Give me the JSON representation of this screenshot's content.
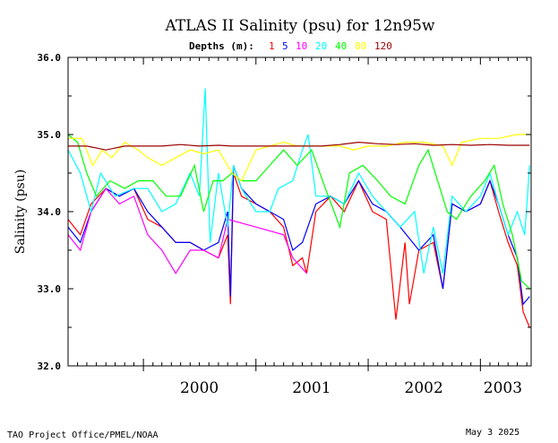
{
  "chart_data": {
    "type": "line",
    "title": "ATLAS II Salinity (psu) for 12n95w",
    "subtitle_label": "Depths (m):",
    "ylabel": "Salinity (psu)",
    "xlabel": "",
    "ylim": [
      32.0,
      36.0
    ],
    "yticks": [
      "32.0",
      "33.0",
      "34.0",
      "35.0",
      "36.0"
    ],
    "xlim": [
      "1999-05-01",
      "2003-06-15"
    ],
    "x_year_labels": [
      {
        "label": "2000",
        "x": "2000-07-01"
      },
      {
        "label": "2001",
        "x": "2001-07-01"
      },
      {
        "label": "2002",
        "x": "2002-07-01"
      },
      {
        "label": "2003",
        "x": "2003-03-15"
      }
    ],
    "legend_position": "top-center",
    "grid": false,
    "series": [
      {
        "name": "1",
        "color": "#ff0000",
        "points": [
          [
            "1999-05-01",
            33.9
          ],
          [
            "1999-06-10",
            33.7
          ],
          [
            "1999-07-15",
            34.1
          ],
          [
            "1999-09-01",
            34.3
          ],
          [
            "1999-10-15",
            34.2
          ],
          [
            "1999-12-01",
            34.3
          ],
          [
            "2000-01-15",
            33.9
          ],
          [
            "2000-03-01",
            33.8
          ],
          [
            "2000-04-15",
            33.6
          ],
          [
            "2000-06-01",
            33.6
          ],
          [
            "2000-07-15",
            33.5
          ],
          [
            "2000-09-01",
            33.4
          ],
          [
            "2000-10-01",
            33.7
          ],
          [
            "2000-10-10",
            32.8
          ],
          [
            "2000-10-20",
            34.5
          ],
          [
            "2000-11-15",
            34.2
          ],
          [
            "2001-01-01",
            34.1
          ],
          [
            "2001-02-15",
            34.0
          ],
          [
            "2001-04-01",
            33.8
          ],
          [
            "2001-05-01",
            33.3
          ],
          [
            "2001-06-01",
            33.4
          ],
          [
            "2001-06-15",
            33.2
          ],
          [
            "2001-07-15",
            34.0
          ],
          [
            "2001-09-01",
            34.2
          ],
          [
            "2001-10-15",
            34.0
          ],
          [
            "2001-12-01",
            34.4
          ],
          [
            "2002-01-15",
            34.0
          ],
          [
            "2002-03-01",
            33.9
          ],
          [
            "2002-04-01",
            32.6
          ],
          [
            "2002-05-01",
            33.6
          ],
          [
            "2002-05-15",
            32.8
          ],
          [
            "2002-06-15",
            33.5
          ],
          [
            "2002-08-01",
            33.6
          ],
          [
            "2002-09-01",
            33.0
          ],
          [
            "2002-10-01",
            34.1
          ],
          [
            "2002-11-15",
            34.0
          ],
          [
            "2003-01-01",
            34.1
          ],
          [
            "2003-02-01",
            34.4
          ],
          [
            "2003-03-01",
            34.0
          ],
          [
            "2003-04-01",
            33.6
          ],
          [
            "2003-05-01",
            33.3
          ],
          [
            "2003-05-20",
            32.7
          ],
          [
            "2003-06-10",
            32.5
          ]
        ]
      },
      {
        "name": "5",
        "color": "#0000ff",
        "points": [
          [
            "1999-05-01",
            33.8
          ],
          [
            "1999-06-10",
            33.6
          ],
          [
            "1999-07-15",
            34.0
          ],
          [
            "1999-09-01",
            34.3
          ],
          [
            "1999-10-15",
            34.2
          ],
          [
            "1999-12-01",
            34.3
          ],
          [
            "2000-01-15",
            34.0
          ],
          [
            "2000-03-01",
            33.8
          ],
          [
            "2000-04-15",
            33.6
          ],
          [
            "2000-06-01",
            33.6
          ],
          [
            "2000-07-15",
            33.5
          ],
          [
            "2000-09-01",
            33.6
          ],
          [
            "2000-10-01",
            34.0
          ],
          [
            "2000-10-10",
            32.9
          ],
          [
            "2000-10-20",
            34.6
          ],
          [
            "2000-11-15",
            34.3
          ],
          [
            "2001-01-01",
            34.1
          ],
          [
            "2001-02-15",
            34.0
          ],
          [
            "2001-04-01",
            33.9
          ],
          [
            "2001-05-01",
            33.5
          ],
          [
            "2001-06-01",
            33.6
          ],
          [
            "2001-07-15",
            34.1
          ],
          [
            "2001-09-01",
            34.2
          ],
          [
            "2001-10-15",
            34.1
          ],
          [
            "2001-12-01",
            34.4
          ],
          [
            "2002-01-15",
            34.1
          ],
          [
            "2002-03-01",
            34.0
          ],
          [
            "2002-04-15",
            33.8
          ],
          [
            "2002-06-15",
            33.5
          ],
          [
            "2002-08-01",
            33.7
          ],
          [
            "2002-09-01",
            33.0
          ],
          [
            "2002-10-01",
            34.1
          ],
          [
            "2002-11-15",
            34.0
          ],
          [
            "2003-01-01",
            34.1
          ],
          [
            "2003-02-01",
            34.4
          ],
          [
            "2003-03-01",
            34.1
          ],
          [
            "2003-04-01",
            33.7
          ],
          [
            "2003-05-01",
            33.4
          ],
          [
            "2003-05-20",
            32.8
          ],
          [
            "2003-06-10",
            32.9
          ]
        ]
      },
      {
        "name": "10",
        "color": "#ff00ff",
        "points": [
          [
            "1999-05-01",
            33.7
          ],
          [
            "1999-06-10",
            33.5
          ],
          [
            "1999-07-15",
            34.0
          ],
          [
            "1999-09-01",
            34.3
          ],
          [
            "1999-10-15",
            34.1
          ],
          [
            "1999-12-01",
            34.2
          ],
          [
            "2000-01-15",
            33.7
          ],
          [
            "2000-03-01",
            33.5
          ],
          [
            "2000-04-15",
            33.2
          ],
          [
            "2000-06-01",
            33.5
          ],
          [
            "2000-07-15",
            33.5
          ],
          [
            "2000-09-01",
            33.4
          ],
          [
            "2000-10-01",
            33.9
          ],
          [
            "2001-01-01",
            33.8
          ],
          [
            "2001-04-01",
            33.7
          ],
          [
            "2001-05-01",
            33.4
          ],
          [
            "2001-06-15",
            33.2
          ]
        ]
      },
      {
        "name": "20",
        "color": "#00ffff",
        "points": [
          [
            "1999-05-01",
            34.8
          ],
          [
            "1999-06-10",
            34.5
          ],
          [
            "1999-07-15",
            34.0
          ],
          [
            "1999-08-15",
            34.5
          ],
          [
            "1999-10-01",
            34.2
          ],
          [
            "1999-12-01",
            34.3
          ],
          [
            "2000-01-15",
            34.3
          ],
          [
            "2000-03-01",
            34.0
          ],
          [
            "2000-04-15",
            34.1
          ],
          [
            "2000-06-01",
            34.5
          ],
          [
            "2000-07-01",
            34.2
          ],
          [
            "2000-07-20",
            35.6
          ],
          [
            "2000-08-05",
            33.6
          ],
          [
            "2000-09-01",
            34.5
          ],
          [
            "2000-10-01",
            33.8
          ],
          [
            "2000-10-20",
            34.6
          ],
          [
            "2000-11-15",
            34.3
          ],
          [
            "2001-01-01",
            34.0
          ],
          [
            "2001-02-15",
            34.0
          ],
          [
            "2001-03-15",
            34.3
          ],
          [
            "2001-05-01",
            34.4
          ],
          [
            "2001-06-01",
            34.8
          ],
          [
            "2001-06-20",
            35.0
          ],
          [
            "2001-07-15",
            34.2
          ],
          [
            "2001-09-01",
            34.2
          ],
          [
            "2001-10-15",
            34.1
          ],
          [
            "2001-12-01",
            34.5
          ],
          [
            "2002-01-15",
            34.2
          ],
          [
            "2002-03-01",
            34.0
          ],
          [
            "2002-04-15",
            33.8
          ],
          [
            "2002-06-01",
            34.0
          ],
          [
            "2002-07-01",
            33.2
          ],
          [
            "2002-08-01",
            33.8
          ],
          [
            "2002-09-01",
            33.2
          ],
          [
            "2002-10-01",
            34.2
          ],
          [
            "2002-11-15",
            34.0
          ],
          [
            "2003-01-01",
            34.2
          ],
          [
            "2003-02-01",
            34.5
          ],
          [
            "2003-03-01",
            34.1
          ],
          [
            "2003-04-01",
            33.7
          ],
          [
            "2003-05-01",
            34.0
          ],
          [
            "2003-05-25",
            33.7
          ],
          [
            "2003-06-10",
            34.6
          ]
        ]
      },
      {
        "name": "40",
        "color": "#00ff00",
        "points": [
          [
            "1999-05-01",
            35.0
          ],
          [
            "1999-06-01",
            34.9
          ],
          [
            "1999-07-01",
            34.5
          ],
          [
            "1999-08-01",
            34.2
          ],
          [
            "1999-09-15",
            34.4
          ],
          [
            "1999-11-01",
            34.3
          ],
          [
            "1999-12-15",
            34.4
          ],
          [
            "2000-02-01",
            34.4
          ],
          [
            "2000-03-15",
            34.2
          ],
          [
            "2000-05-01",
            34.2
          ],
          [
            "2000-06-15",
            34.6
          ],
          [
            "2000-07-15",
            34.0
          ],
          [
            "2000-08-15",
            34.4
          ],
          [
            "2000-09-15",
            34.4
          ],
          [
            "2000-10-15",
            34.5
          ],
          [
            "2000-11-15",
            34.4
          ],
          [
            "2001-01-01",
            34.4
          ],
          [
            "2001-02-15",
            34.6
          ],
          [
            "2001-04-01",
            34.8
          ],
          [
            "2001-05-15",
            34.6
          ],
          [
            "2001-07-01",
            34.8
          ],
          [
            "2001-08-15",
            34.3
          ],
          [
            "2001-10-01",
            33.8
          ],
          [
            "2001-11-01",
            34.5
          ],
          [
            "2001-12-15",
            34.6
          ],
          [
            "2002-02-01",
            34.4
          ],
          [
            "2002-03-15",
            34.2
          ],
          [
            "2002-05-01",
            34.1
          ],
          [
            "2002-06-15",
            34.6
          ],
          [
            "2002-07-15",
            34.8
          ],
          [
            "2002-08-15",
            34.4
          ],
          [
            "2002-09-15",
            34.0
          ],
          [
            "2002-10-15",
            33.9
          ],
          [
            "2002-12-01",
            34.2
          ],
          [
            "2003-01-15",
            34.4
          ],
          [
            "2003-02-15",
            34.6
          ],
          [
            "2003-03-15",
            34.1
          ],
          [
            "2003-04-15",
            33.7
          ],
          [
            "2003-05-15",
            33.1
          ],
          [
            "2003-06-10",
            33.0
          ]
        ]
      },
      {
        "name": "80",
        "color": "#ffff00",
        "points": [
          [
            "1999-05-01",
            34.95
          ],
          [
            "1999-06-15",
            34.95
          ],
          [
            "1999-07-20",
            34.6
          ],
          [
            "1999-08-20",
            34.8
          ],
          [
            "1999-09-20",
            34.7
          ],
          [
            "1999-11-01",
            34.9
          ],
          [
            "1999-12-15",
            34.8
          ],
          [
            "2000-01-15",
            34.7
          ],
          [
            "2000-03-01",
            34.6
          ],
          [
            "2000-04-15",
            34.7
          ],
          [
            "2000-06-01",
            34.8
          ],
          [
            "2000-07-15",
            34.75
          ],
          [
            "2000-09-01",
            34.8
          ],
          [
            "2000-10-15",
            34.5
          ],
          [
            "2000-11-15",
            34.4
          ],
          [
            "2001-01-01",
            34.8
          ],
          [
            "2001-02-15",
            34.85
          ],
          [
            "2001-04-01",
            34.9
          ],
          [
            "2001-05-15",
            34.85
          ],
          [
            "2001-07-01",
            34.85
          ],
          [
            "2001-08-15",
            34.85
          ],
          [
            "2001-10-01",
            34.85
          ],
          [
            "2001-11-15",
            34.8
          ],
          [
            "2002-01-01",
            34.85
          ],
          [
            "2002-03-01",
            34.85
          ],
          [
            "2002-05-01",
            34.9
          ],
          [
            "2002-07-01",
            34.9
          ],
          [
            "2002-09-01",
            34.85
          ],
          [
            "2002-10-01",
            34.6
          ],
          [
            "2002-11-01",
            34.9
          ],
          [
            "2003-01-01",
            34.95
          ],
          [
            "2003-03-01",
            34.95
          ],
          [
            "2003-05-01",
            35.0
          ],
          [
            "2003-06-10",
            35.0
          ]
        ]
      },
      {
        "name": "120",
        "color": "#990000",
        "points": [
          [
            "1999-05-01",
            34.85
          ],
          [
            "1999-07-01",
            34.85
          ],
          [
            "1999-09-01",
            34.8
          ],
          [
            "1999-11-01",
            34.85
          ],
          [
            "2000-01-01",
            34.85
          ],
          [
            "2000-03-01",
            34.85
          ],
          [
            "2000-05-01",
            34.87
          ],
          [
            "2000-07-01",
            34.85
          ],
          [
            "2000-09-01",
            34.86
          ],
          [
            "2000-10-15",
            34.85
          ],
          [
            "2001-08-01",
            34.85
          ],
          [
            "2001-10-01",
            34.87
          ],
          [
            "2001-12-01",
            34.9
          ],
          [
            "2002-02-01",
            34.88
          ],
          [
            "2002-04-01",
            34.87
          ],
          [
            "2002-06-01",
            34.88
          ],
          [
            "2002-08-01",
            34.86
          ],
          [
            "2002-10-01",
            34.87
          ],
          [
            "2002-12-01",
            34.86
          ],
          [
            "2003-02-01",
            34.87
          ],
          [
            "2003-04-01",
            34.86
          ],
          [
            "2003-06-10",
            34.86
          ]
        ]
      }
    ]
  },
  "footer": {
    "left": "TAO Project Office/PMEL/NOAA",
    "right": "May  3 2025"
  }
}
